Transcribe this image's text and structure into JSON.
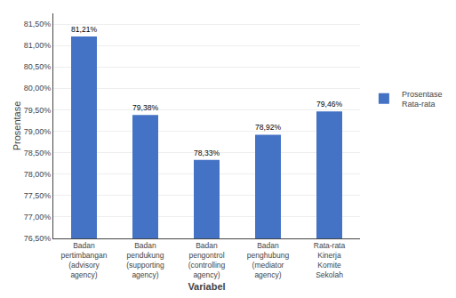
{
  "chart_data": {
    "type": "bar",
    "categories": [
      "Badan\npertimbangan\n(advisory\nagency)",
      "Badan\npendukung\n(supporting\nagency)",
      "Badan\npengontrol\n(controlling\nagency)",
      "Badan\npenghubung\n(mediator\nagency)",
      "Rata-rata\nKinerja\nKomite\nSekolah"
    ],
    "series": [
      {
        "name": "Prosentase\nRata-rata",
        "color": "#4472c4",
        "values": [
          81.21,
          79.38,
          78.33,
          78.92,
          79.46
        ],
        "value_labels": [
          "81,21%",
          "79,38%",
          "78,33%",
          "78,92%",
          "79,46%"
        ]
      }
    ],
    "xlabel": "Variabel",
    "ylabel": "Prosentase",
    "ylim": [
      76.5,
      81.75
    ],
    "yticks": [
      {
        "value": 76.5,
        "label": "76,50%"
      },
      {
        "value": 77.0,
        "label": "77,00%"
      },
      {
        "value": 77.5,
        "label": "77,50%"
      },
      {
        "value": 78.0,
        "label": "78,00%"
      },
      {
        "value": 78.5,
        "label": "78,50%"
      },
      {
        "value": 79.0,
        "label": "79,00%"
      },
      {
        "value": 79.5,
        "label": "79,50%"
      },
      {
        "value": 80.0,
        "label": "80,00%"
      },
      {
        "value": 80.5,
        "label": "80,50%"
      },
      {
        "value": 81.0,
        "label": "81,00%"
      },
      {
        "value": 81.5,
        "label": "81,50%"
      }
    ],
    "grid": true,
    "legend": "right",
    "data_labels": true
  }
}
